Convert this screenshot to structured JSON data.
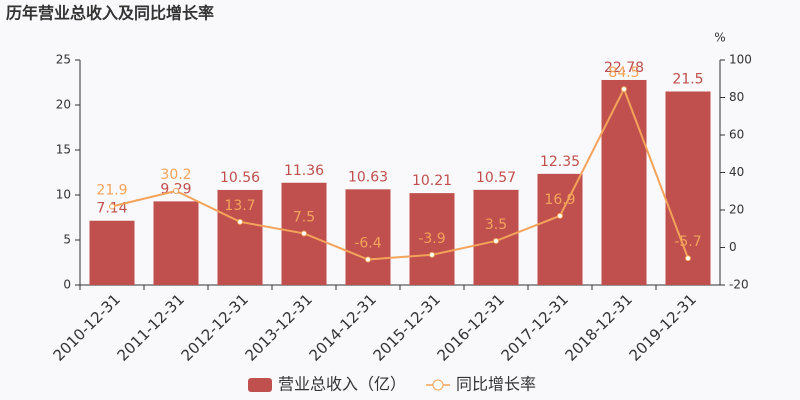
{
  "chart_data": {
    "type": "combo",
    "title": "历年营业总收入及同比增长率",
    "categories": [
      "2010-12-31",
      "2011-12-31",
      "2012-12-31",
      "2013-12-31",
      "2014-12-31",
      "2015-12-31",
      "2016-12-31",
      "2017-12-31",
      "2018-12-31",
      "2019-12-31"
    ],
    "series": [
      {
        "name": "营业总收入（亿）",
        "type": "bar",
        "color": "#c0504d",
        "values": [
          7.14,
          9.29,
          10.56,
          11.36,
          10.63,
          10.21,
          10.57,
          12.35,
          22.78,
          21.5
        ]
      },
      {
        "name": "同比增长率",
        "type": "line",
        "axis": "y2",
        "color": "#f4a35a",
        "values": [
          21.9,
          30.2,
          13.7,
          7.5,
          -6.4,
          -3.9,
          3.5,
          16.9,
          84.5,
          -5.7
        ]
      }
    ],
    "ylim": [
      0,
      25
    ],
    "yticks": [
      0,
      5,
      10,
      15,
      20,
      25
    ],
    "y2label": "%",
    "y2lim": [
      -20,
      100
    ],
    "y2ticks": [
      -20,
      0,
      20,
      40,
      60,
      80,
      100
    ],
    "legend": "bottom"
  }
}
